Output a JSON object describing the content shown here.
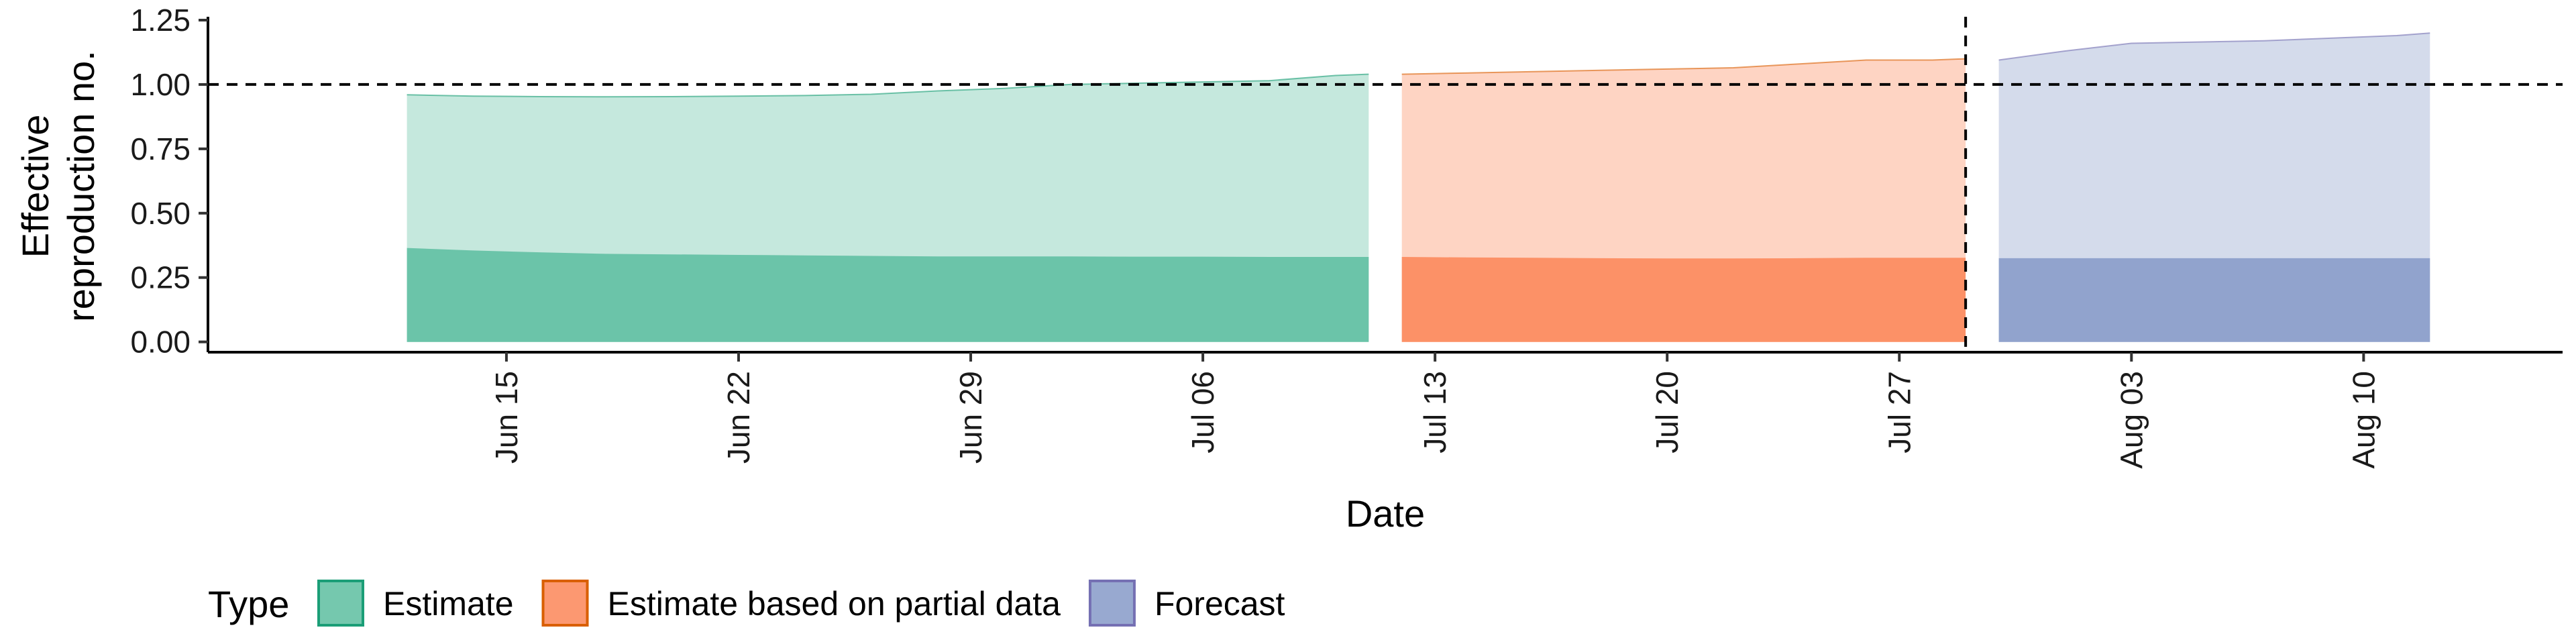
{
  "chart_data": {
    "type": "area",
    "xlabel": "Date",
    "ylabel_lines": [
      "Effective",
      "reproduction no."
    ],
    "y_ticks": [
      "0.00",
      "0.25",
      "0.50",
      "0.75",
      "1.00",
      "1.25"
    ],
    "y_tick_values": [
      0,
      0.25,
      0.5,
      0.75,
      1.0,
      1.25
    ],
    "ylim": [
      -0.04,
      1.25
    ],
    "xlim": [
      "2020-06-06",
      "2020-08-16"
    ],
    "x_ticks": [
      {
        "date": "2020-06-15",
        "label": "Jun 15"
      },
      {
        "date": "2020-06-22",
        "label": "Jun 22"
      },
      {
        "date": "2020-06-29",
        "label": "Jun 29"
      },
      {
        "date": "2020-07-06",
        "label": "Jul 06"
      },
      {
        "date": "2020-07-13",
        "label": "Jul 13"
      },
      {
        "date": "2020-07-20",
        "label": "Jul 20"
      },
      {
        "date": "2020-07-27",
        "label": "Jul 27"
      },
      {
        "date": "2020-08-03",
        "label": "Aug 03"
      },
      {
        "date": "2020-08-10",
        "label": "Aug 10"
      }
    ],
    "reference_line_y": 1.0,
    "vertical_line_date": "2020-07-29",
    "legend": {
      "title": "Type",
      "position": "bottom",
      "entries": [
        "Estimate",
        "Estimate based on partial data",
        "Forecast"
      ]
    },
    "series": [
      {
        "name": "Estimate",
        "color_fill": "#66c2a5",
        "color_line": "#1b9e77",
        "x": [
          "2020-06-12",
          "2020-06-14",
          "2020-06-16",
          "2020-06-18",
          "2020-06-20",
          "2020-06-22",
          "2020-06-24",
          "2020-06-26",
          "2020-06-28",
          "2020-06-30",
          "2020-07-02",
          "2020-07-04",
          "2020-07-06",
          "2020-07-08",
          "2020-07-10",
          "2020-07-11"
        ],
        "upper": [
          0.96,
          0.955,
          0.953,
          0.952,
          0.953,
          0.955,
          0.957,
          0.962,
          0.975,
          0.985,
          1.0,
          1.005,
          1.01,
          1.015,
          1.035,
          1.04
        ],
        "inner_upper": [
          0.365,
          0.355,
          0.348,
          0.342,
          0.34,
          0.338,
          0.336,
          0.334,
          0.332,
          0.332,
          0.332,
          0.331,
          0.331,
          0.33,
          0.33,
          0.33
        ],
        "inner_lower": [
          0.0,
          0.0,
          0.0,
          0.0,
          0.0,
          0.0,
          0.0,
          0.0,
          0.0,
          0.0,
          0.0,
          0.0,
          0.0,
          0.0,
          0.0,
          0.0
        ],
        "lower": [
          0.0,
          0.0,
          0.0,
          0.0,
          0.0,
          0.0,
          0.0,
          0.0,
          0.0,
          0.0,
          0.0,
          0.0,
          0.0,
          0.0,
          0.0,
          0.0
        ]
      },
      {
        "name": "Estimate based on partial data",
        "color_fill": "#fc8d62",
        "color_line": "#d95f02",
        "x": [
          "2020-07-12",
          "2020-07-14",
          "2020-07-16",
          "2020-07-18",
          "2020-07-20",
          "2020-07-22",
          "2020-07-24",
          "2020-07-26",
          "2020-07-28",
          "2020-07-29"
        ],
        "upper": [
          1.04,
          1.045,
          1.05,
          1.055,
          1.06,
          1.065,
          1.08,
          1.095,
          1.095,
          1.1
        ],
        "inner_upper": [
          0.33,
          0.328,
          0.327,
          0.325,
          0.324,
          0.324,
          0.325,
          0.327,
          0.327,
          0.327
        ],
        "inner_lower": [
          0.0,
          0.0,
          0.0,
          0.0,
          0.0,
          0.0,
          0.0,
          0.0,
          0.0,
          0.0
        ],
        "lower": [
          0.0,
          0.0,
          0.0,
          0.0,
          0.0,
          0.0,
          0.0,
          0.0,
          0.0,
          0.0
        ]
      },
      {
        "name": "Forecast",
        "color_fill": "#8da0cb",
        "color_line": "#7570b3",
        "x": [
          "2020-07-30",
          "2020-08-01",
          "2020-08-03",
          "2020-08-05",
          "2020-08-07",
          "2020-08-09",
          "2020-08-11",
          "2020-08-12"
        ],
        "upper": [
          1.095,
          1.13,
          1.16,
          1.165,
          1.17,
          1.18,
          1.19,
          1.2
        ],
        "inner_upper": [
          0.325,
          0.325,
          0.325,
          0.325,
          0.325,
          0.325,
          0.325,
          0.325
        ],
        "inner_lower": [
          0.0,
          0.0,
          0.0,
          0.0,
          0.0,
          0.0,
          0.0,
          0.0
        ],
        "lower": [
          0.0,
          0.0,
          0.0,
          0.0,
          0.0,
          0.0,
          0.0,
          0.0
        ]
      }
    ]
  }
}
